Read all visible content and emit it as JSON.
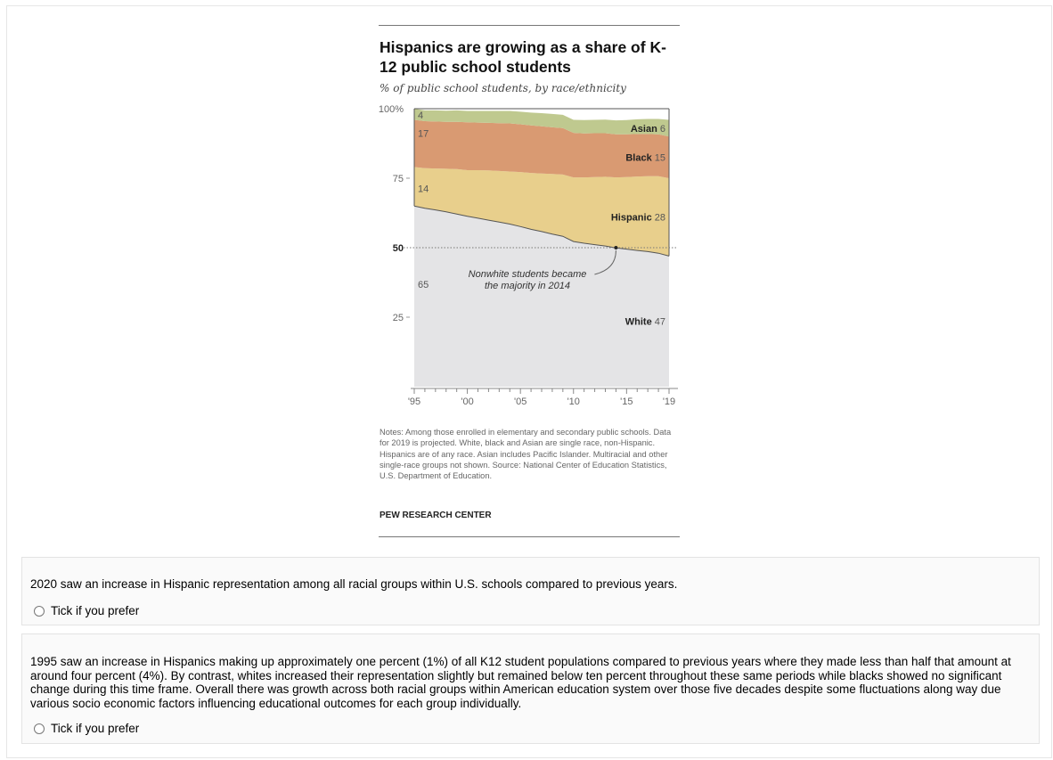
{
  "figure": {
    "title": "Hispanics are growing as a share of K-12 public school students",
    "subtitle": "% of public school students, by race/ethnicity",
    "notes": "Notes: Among those enrolled in elementary and secondary public schools. Data for 2019 is projected. White, black and Asian are single race, non-Hispanic. Hispanics are of any race. Asian includes Pacific Islander. Multiracial and other single-race groups not shown. Source: National Center of Education Statistics, U.S. Department of Education.",
    "source_brand": "PEW RESEARCH CENTER"
  },
  "chart_data": {
    "type": "area",
    "stacked": true,
    "x": [
      1995,
      1996,
      1997,
      1998,
      1999,
      2000,
      2001,
      2002,
      2003,
      2004,
      2005,
      2006,
      2007,
      2008,
      2009,
      2010,
      2011,
      2012,
      2013,
      2014,
      2015,
      2016,
      2017,
      2018,
      2019
    ],
    "x_tick_labels": [
      "'95",
      "'00",
      "'05",
      "'10",
      "'15",
      "'19"
    ],
    "x_tick_values": [
      1995,
      2000,
      2005,
      2010,
      2015,
      2019
    ],
    "y_tick_labels": [
      "100%",
      "75",
      "50",
      "25"
    ],
    "y_tick_values": [
      100,
      75,
      50,
      25
    ],
    "ylim": [
      0,
      100
    ],
    "series": [
      {
        "name": "White",
        "color": "#e4e4e6",
        "end_label_value": "47",
        "start_label_value": "65",
        "values": [
          65,
          64.2,
          63.6,
          62.9,
          62.1,
          61.3,
          60.6,
          59.9,
          59.2,
          58.5,
          57.6,
          56.6,
          55.8,
          54.9,
          54.1,
          52.2,
          51.6,
          51.1,
          50.6,
          49.9,
          49.5,
          49.0,
          48.6,
          48.0,
          47
        ]
      },
      {
        "name": "Hispanic",
        "color": "#e8cf8c",
        "end_label_value": "28",
        "start_label_value": "14",
        "values": [
          14,
          14.4,
          14.9,
          15.5,
          16.2,
          16.6,
          17.3,
          17.9,
          18.4,
          18.9,
          19.6,
          20.3,
          20.9,
          21.6,
          22.2,
          23.1,
          23.7,
          24.3,
          24.9,
          25.4,
          25.9,
          26.6,
          27.1,
          27.7,
          28
        ]
      },
      {
        "name": "Black",
        "color": "#d99a72",
        "end_label_value": "15",
        "start_label_value": "17",
        "values": [
          17,
          16.9,
          16.9,
          16.9,
          17.0,
          17.2,
          17.1,
          17.1,
          17.2,
          17.3,
          17.2,
          17.1,
          17.0,
          16.8,
          16.7,
          16.0,
          15.8,
          15.8,
          15.7,
          15.5,
          15.4,
          15.3,
          15.2,
          15.1,
          15
        ]
      },
      {
        "name": "Asian",
        "color": "#bfc98f",
        "end_label_value": "6",
        "start_label_value": "4",
        "values": [
          4,
          3.9,
          4.0,
          4.0,
          4.1,
          4.1,
          4.2,
          4.3,
          4.4,
          4.5,
          4.5,
          4.6,
          4.7,
          4.8,
          4.8,
          4.7,
          4.8,
          4.8,
          4.9,
          5.0,
          5.1,
          5.3,
          5.4,
          5.5,
          6
        ]
      }
    ],
    "reference_line": 50,
    "annotation": {
      "text_lines": [
        "Nonwhite students became",
        "the majority in 2014"
      ],
      "year": 2014
    }
  },
  "questions": [
    {
      "text": "2020 saw an increase in Hispanic representation among all racial groups within U.S. schools compared to previous years.",
      "option": "Tick if you prefer"
    },
    {
      "text": "1995 saw an increase in Hispanics making up approximately one percent (1%) of all K12 student populations compared to previous years where they made less than half that amount at around four percent (4%). By contrast, whites increased their representation slightly but remained below ten percent throughout these same periods while blacks showed no significant change during this time frame. Overall there was growth across both racial groups within American education system over those five decades despite some fluctuations along way due various socio economic factors influencing educational outcomes for each group individually.",
      "option": "Tick if you prefer"
    }
  ]
}
